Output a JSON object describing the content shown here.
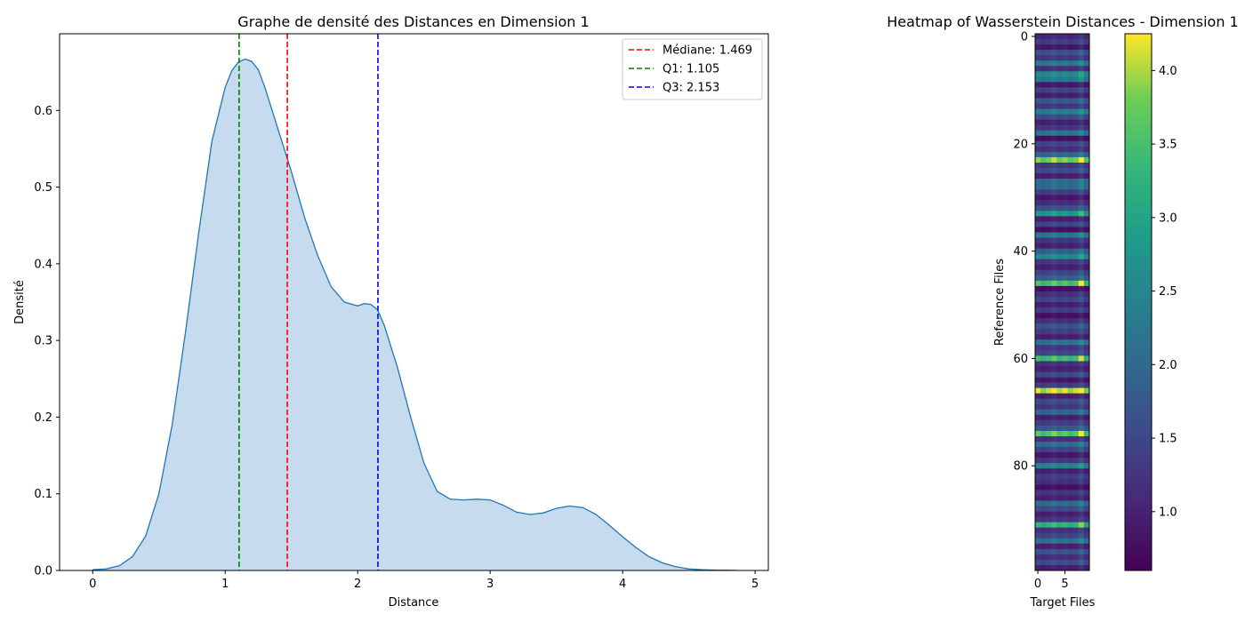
{
  "chart_data": [
    {
      "type": "area",
      "title": "Graphe de densité des Distances en Dimension 1",
      "xlabel": "Distance",
      "ylabel": "Densité",
      "xlim": [
        -0.25,
        5.1
      ],
      "ylim": [
        0,
        0.7
      ],
      "xticks": [
        "0",
        "1",
        "2",
        "3",
        "4",
        "5"
      ],
      "yticks": [
        "0.0",
        "0.1",
        "0.2",
        "0.3",
        "0.4",
        "0.5",
        "0.6"
      ],
      "grid": false,
      "legend_position": "top-right",
      "series": [
        {
          "color": "#1f77b4",
          "fill_color": "#c6dbed",
          "x": [
            0.0,
            0.1,
            0.2,
            0.3,
            0.4,
            0.5,
            0.6,
            0.7,
            0.8,
            0.9,
            1.0,
            1.05,
            1.1,
            1.15,
            1.2,
            1.25,
            1.3,
            1.4,
            1.5,
            1.6,
            1.7,
            1.8,
            1.9,
            2.0,
            2.05,
            2.1,
            2.15,
            2.2,
            2.3,
            2.4,
            2.5,
            2.6,
            2.7,
            2.8,
            2.9,
            3.0,
            3.1,
            3.2,
            3.3,
            3.4,
            3.5,
            3.6,
            3.7,
            3.8,
            3.9,
            4.0,
            4.1,
            4.2,
            4.3,
            4.4,
            4.5,
            4.6,
            4.7,
            4.8,
            4.87
          ],
          "y": [
            0.001,
            0.002,
            0.006,
            0.018,
            0.045,
            0.1,
            0.19,
            0.31,
            0.44,
            0.56,
            0.63,
            0.652,
            0.663,
            0.667,
            0.664,
            0.653,
            0.63,
            0.575,
            0.52,
            0.46,
            0.41,
            0.37,
            0.35,
            0.345,
            0.348,
            0.347,
            0.34,
            0.32,
            0.265,
            0.2,
            0.14,
            0.103,
            0.093,
            0.092,
            0.093,
            0.092,
            0.085,
            0.076,
            0.073,
            0.075,
            0.081,
            0.084,
            0.082,
            0.073,
            0.059,
            0.044,
            0.03,
            0.018,
            0.01,
            0.005,
            0.002,
            0.001,
            0.0005,
            0.0002,
            0.0
          ]
        }
      ],
      "vlines": [
        {
          "label": "Médiane: 1.469",
          "x": 1.469,
          "color": "#ff0000"
        },
        {
          "label": "Q1: 1.105",
          "x": 1.105,
          "color": "#008000"
        },
        {
          "label": "Q3: 2.153",
          "x": 2.153,
          "color": "#0000ff"
        }
      ]
    },
    {
      "type": "heatmap",
      "title": "Heatmap of Wasserstein Distances - Dimension 1",
      "xlabel": "Target Files",
      "ylabel": "Reference Files",
      "rows": 100,
      "cols": 10,
      "xticks": [
        "0",
        "5"
      ],
      "yticks": [
        "0",
        "20",
        "40",
        "60",
        "80"
      ],
      "colormap": "viridis",
      "colorbar": {
        "min": 0.6,
        "max": 4.25,
        "ticks": [
          "1.0",
          "1.5",
          "2.0",
          "2.5",
          "3.0",
          "3.5",
          "4.0"
        ]
      },
      "row_base": [
        1.1,
        1.4,
        0.9,
        1.7,
        1.3,
        2.3,
        1.2,
        2.6,
        2.3,
        0.9,
        1.5,
        1.0,
        1.8,
        1.3,
        2.4,
        1.6,
        1.0,
        1.3,
        2.2,
        0.8,
        1.5,
        1.2,
        2.0,
        3.9,
        1.3,
        1.6,
        1.0,
        2.1,
        2.1,
        1.4,
        0.9,
        1.2,
        1.7,
        2.9,
        1.0,
        1.5,
        0.8,
        2.3,
        1.3,
        1.0,
        1.9,
        2.6,
        1.3,
        1.0,
        1.5,
        1.9,
        3.6,
        0.8,
        1.2,
        1.5,
        1.0,
        1.4,
        0.8,
        1.2,
        1.7,
        1.4,
        1.0,
        2.2,
        1.3,
        1.5,
        3.5,
        1.2,
        1.0,
        1.6,
        0.9,
        1.4,
        4.2,
        1.0,
        1.6,
        1.3,
        2.0,
        1.0,
        1.4,
        1.8,
        3.7,
        1.2,
        2.1,
        1.5,
        0.9,
        1.3,
        2.5,
        1.0,
        1.4,
        1.2,
        0.8,
        1.3,
        1.0,
        2.1,
        1.6,
        1.0,
        1.3,
        3.3,
        1.2,
        1.5,
        2.2,
        1.0,
        1.7,
        1.2,
        1.6,
        1.0
      ],
      "col_factor": [
        1.0,
        0.92,
        0.97,
        1.05,
        0.95,
        1.0,
        0.93,
        0.98,
        1.18,
        0.9
      ]
    }
  ]
}
